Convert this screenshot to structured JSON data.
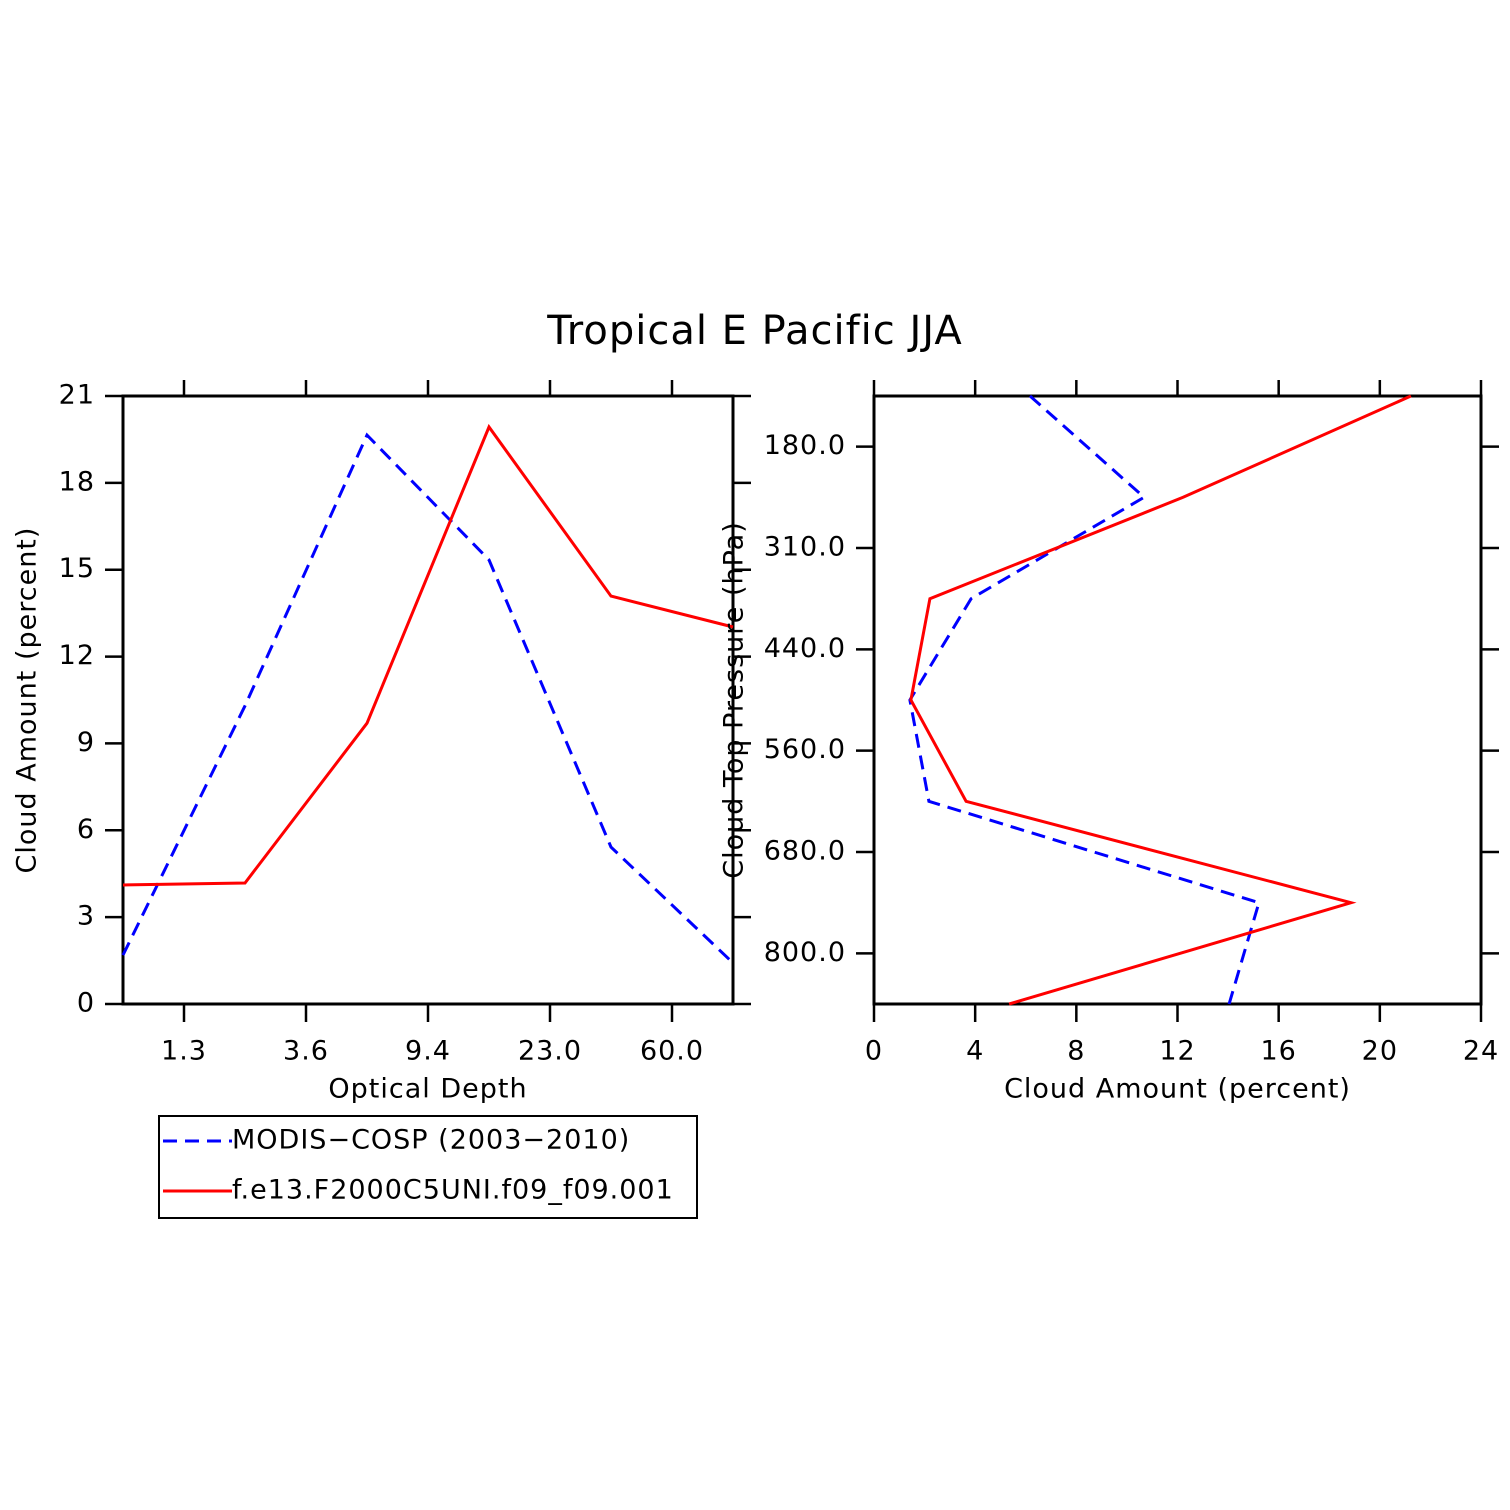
{
  "chart_data": [
    {
      "type": "line",
      "title": "Tropical E Pacific JJA",
      "x_label": "Optical Depth",
      "y_label": "Cloud Amount (percent)",
      "x": [
        0,
        1,
        2,
        3,
        4,
        5
      ],
      "xlim": [
        0,
        5
      ],
      "xticks": [
        {
          "value": 0.5,
          "label": "1.3"
        },
        {
          "value": 1.5,
          "label": "3.6"
        },
        {
          "value": 2.5,
          "label": "9.4"
        },
        {
          "value": 3.5,
          "label": "23.0"
        },
        {
          "value": 4.5,
          "label": "60.0"
        }
      ],
      "ylim": [
        0,
        21
      ],
      "yticks": [
        0,
        3,
        6,
        9,
        12,
        15,
        18,
        21
      ],
      "series": [
        {
          "name": "MODIS−COSP (2003−2010)",
          "color": "#0000ff",
          "dash": "dashed",
          "values": [
            1.69,
            10.3,
            19.65,
            15.34,
            5.42,
            1.42
          ]
        },
        {
          "name": "f.e13.F2000C5UNI.f09_f09.001",
          "color": "#ff0000",
          "dash": "solid",
          "values": [
            4.11,
            4.18,
            9.7,
            19.93,
            14.09,
            13.02
          ]
        }
      ]
    },
    {
      "type": "line_horizontal",
      "x_label": "Cloud Amount (percent)",
      "y_label": "Cloud Top Pressure (hPa)",
      "y": [
        0,
        1,
        2,
        3,
        4,
        5,
        6
      ],
      "ylim": [
        6,
        0
      ],
      "yticks": [
        {
          "value": 0.5,
          "label": "180.0"
        },
        {
          "value": 1.5,
          "label": "310.0"
        },
        {
          "value": 2.5,
          "label": "440.0"
        },
        {
          "value": 3.5,
          "label": "560.0"
        },
        {
          "value": 4.5,
          "label": "680.0"
        },
        {
          "value": 5.5,
          "label": "800.0"
        }
      ],
      "xlim": [
        0,
        24
      ],
      "xticks": [
        0,
        4,
        8,
        12,
        16,
        20,
        24
      ],
      "series": [
        {
          "color": "#0000ff",
          "dash": "dashed",
          "values": [
            6.17,
            10.68,
            3.84,
            1.42,
            2.17,
            15.22,
            14.04
          ]
        },
        {
          "color": "#ff0000",
          "dash": "solid",
          "values": [
            21.23,
            12.22,
            2.21,
            1.46,
            3.64,
            18.86,
            5.34
          ]
        }
      ]
    }
  ]
}
